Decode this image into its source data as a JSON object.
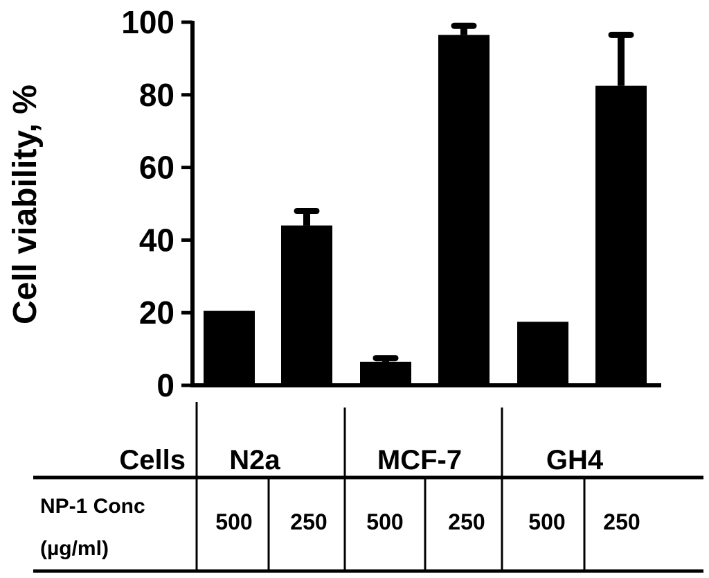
{
  "chart_data": {
    "type": "bar",
    "title": "",
    "xlabel": "",
    "ylabel": "Cell viability, %",
    "ylim": [
      0,
      100
    ],
    "yticks": [
      "0",
      "20",
      "40",
      "60",
      "80",
      "100"
    ],
    "grid": false,
    "bars": [
      {
        "cell": "N2a",
        "conc": "500",
        "value": 20.5,
        "error": 0
      },
      {
        "cell": "N2a",
        "conc": "250",
        "value": 44,
        "error": 4
      },
      {
        "cell": "MCF-7",
        "conc": "500",
        "value": 6.5,
        "error": 1
      },
      {
        "cell": "MCF-7",
        "conc": "250",
        "value": 96.5,
        "error": 2.5
      },
      {
        "cell": "GH4",
        "conc": "500",
        "value": 17.5,
        "error": 0
      },
      {
        "cell": "GH4",
        "conc": "250",
        "value": 82.5,
        "error": 14
      }
    ],
    "table": {
      "cells_header": "Cells",
      "conc_header_line1": "NP-1 Conc",
      "conc_header_line2": "(µg/ml)",
      "groups": [
        "N2a",
        "MCF-7",
        "GH4"
      ]
    },
    "colors": {
      "bar": "#000000",
      "axis": "#000000",
      "background": "#ffffff"
    }
  }
}
